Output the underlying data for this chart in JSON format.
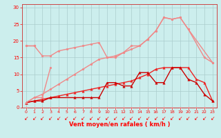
{
  "xlabel": "Vent moyen/en rafales ( km/h )",
  "bg_color": "#cceeed",
  "grid_color": "#aacccc",
  "xlim": [
    -0.5,
    23.5
  ],
  "ylim": [
    0,
    31
  ],
  "yticks": [
    0,
    5,
    10,
    15,
    20,
    25,
    30
  ],
  "xtick_labels": [
    "0",
    "1",
    "2",
    "3",
    "4",
    "5",
    "6",
    "7",
    "8",
    "9",
    "10",
    "11",
    "12",
    "13",
    "14",
    "15",
    "16",
    "17",
    "18",
    "19",
    "20",
    "21",
    "22",
    "23"
  ],
  "series": [
    {
      "x": [
        0,
        1,
        2,
        3,
        4,
        5,
        6,
        7,
        8,
        9,
        10,
        11,
        12,
        13,
        14,
        15,
        16,
        17,
        18,
        19,
        20,
        22,
        23
      ],
      "y": [
        18.5,
        18.5,
        15.5,
        15.5,
        17,
        17.5,
        18,
        18.5,
        19,
        19.5,
        15,
        15,
        16.5,
        18.5,
        18.5,
        20.5,
        23,
        27,
        26.5,
        27,
        23.5,
        15,
        13.5
      ],
      "color": "#f08888",
      "lw": 1.0,
      "marker": "o",
      "ms": 2.0
    },
    {
      "x": [
        0,
        1
      ],
      "y": [
        18.5,
        18.5
      ],
      "color": "#f08888",
      "lw": 1.0,
      "marker": "o",
      "ms": 2.0
    },
    {
      "x": [
        0,
        1,
        2,
        3,
        4,
        5,
        6,
        7,
        8,
        9,
        10,
        11,
        12,
        13,
        14,
        15,
        16,
        17,
        18,
        19,
        20,
        23
      ],
      "y": [
        1.5,
        3,
        4,
        5.5,
        7,
        8.5,
        10,
        11.5,
        13,
        14.5,
        15,
        15.5,
        16.5,
        17.5,
        18.5,
        20.5,
        23,
        27,
        26.5,
        27,
        23.5,
        13.5
      ],
      "color": "#f08888",
      "lw": 1.0,
      "marker": "o",
      "ms": 2.0
    },
    {
      "x": [
        0,
        1,
        2,
        3,
        4,
        5,
        6,
        7,
        8,
        9,
        10,
        11,
        12,
        13,
        14,
        15,
        16,
        17,
        18,
        19,
        20,
        21,
        22,
        23
      ],
      "y": [
        1.5,
        2,
        2.5,
        3,
        3.5,
        4,
        4.5,
        5,
        5.5,
        6,
        6.5,
        7,
        7.5,
        8,
        9,
        10,
        11.5,
        12,
        12,
        12,
        12,
        8.5,
        7.5,
        2
      ],
      "color": "#ee2222",
      "lw": 1.0,
      "marker": "^",
      "ms": 2.5
    },
    {
      "x": [
        0,
        1,
        2,
        3,
        6,
        7,
        8,
        9,
        10,
        11,
        12,
        13,
        14,
        15,
        16,
        17,
        18,
        19,
        20,
        21,
        22,
        23
      ],
      "y": [
        1.5,
        2,
        2,
        3,
        3,
        3,
        3,
        3,
        7.5,
        7.5,
        6.5,
        6.5,
        10.5,
        10.5,
        7.5,
        7.5,
        12,
        12,
        8.5,
        7.5,
        4,
        2
      ],
      "color": "#cc0000",
      "lw": 1.0,
      "marker": "^",
      "ms": 2.5
    },
    {
      "x": [
        0,
        1,
        2,
        3,
        4,
        5,
        6,
        7,
        8,
        9,
        10,
        11,
        12,
        13,
        14,
        15,
        16,
        17,
        18,
        19,
        20,
        21,
        22,
        23
      ],
      "y": [
        0,
        0,
        0,
        0,
        0,
        0,
        0,
        0,
        0,
        0,
        0,
        0,
        0,
        0,
        0,
        0,
        0,
        0,
        0,
        0,
        0,
        0,
        0,
        0
      ],
      "color": "#f08888",
      "lw": 0.8,
      "marker": "o",
      "ms": 1.5
    },
    {
      "x": [
        0,
        1,
        2,
        3
      ],
      "y": [
        1.5,
        3,
        3,
        12
      ],
      "color": "#f08888",
      "lw": 1.0,
      "marker": "o",
      "ms": 2.0
    }
  ]
}
